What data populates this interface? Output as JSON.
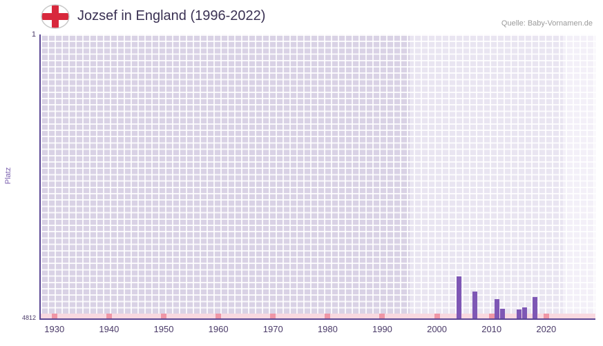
{
  "header": {
    "title": "Jozsef in England (1996-2022)",
    "source": "Quelle: Baby-Vornamen.de",
    "flag_icon": "england-flag-icon"
  },
  "colors": {
    "bar": "#7e57b5",
    "axis": "#5a4693",
    "tick_text": "#4a3a68",
    "title_text": "#3a3153",
    "source_text": "#9a9a9a",
    "ylabel_text": "#7a5fae",
    "grid_line": "#ffffff",
    "flag_cross": "#d8283c"
  },
  "chart_data": {
    "type": "bar",
    "title": "Jozsef in England (1996-2022)",
    "xlabel": "",
    "ylabel": "Platz",
    "grid": true,
    "legend_position": "none",
    "y_axis": {
      "min": 1,
      "max": 4812,
      "inverted": true,
      "top_label": "1",
      "bottom_label": "4812"
    },
    "x_range": [
      1927.5,
      2029
    ],
    "x_ticks": [
      "1930",
      "1940",
      "1950",
      "1960",
      "1970",
      "1980",
      "1990",
      "2000",
      "2010",
      "2020"
    ],
    "bars": [
      {
        "year": 2004,
        "rank": 4100
      },
      {
        "year": 2007,
        "rank": 4360
      },
      {
        "year": 2011,
        "rank": 4480
      },
      {
        "year": 2012,
        "rank": 4650
      },
      {
        "year": 2015,
        "rank": 4660
      },
      {
        "year": 2016,
        "rank": 4630
      },
      {
        "year": 2018,
        "rank": 4450
      }
    ],
    "regions": [
      {
        "from": 1927.5,
        "to": 1995,
        "color": "#d9d2e5"
      },
      {
        "from": 1995,
        "to": 2023,
        "color": "#e9e5f1"
      },
      {
        "from": 2023,
        "to": 2029,
        "color": "#f3f0f8"
      }
    ],
    "baseline_band": {
      "color": "#f9d9e0",
      "mark_color": "#ef96a6",
      "mark_years": [
        1930,
        1940,
        1950,
        1960,
        1970,
        1980,
        1990,
        2000,
        2010,
        2020
      ]
    }
  }
}
